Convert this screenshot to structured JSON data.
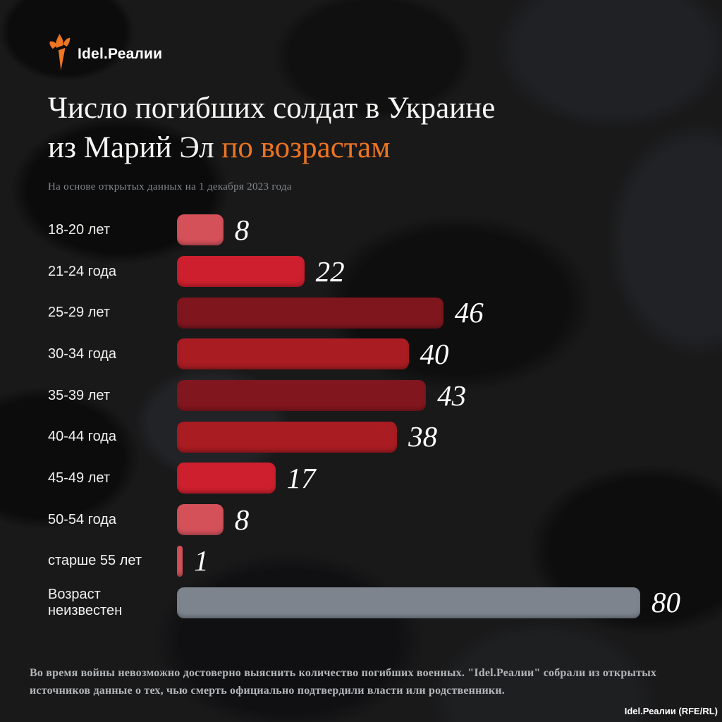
{
  "logo": {
    "text": "Idel.Реалии",
    "icon": "torch-icon",
    "icon_color": "#ee7623"
  },
  "header": {
    "title_line1": "Число погибших солдат в Украине",
    "title_line2_white": "из Марий Эл",
    "title_line2_accent": "по возрастам",
    "accent_color": "#ed7422",
    "subtitle": "На основе открытых данных на 1 декабря 2023 года"
  },
  "chart_data": {
    "type": "bar",
    "orientation": "horizontal",
    "title": "Число погибших солдат в Украине из Марий Эл по возрастам",
    "subtitle": "На основе открытых данных на 1 декабря 2023 года",
    "categories": [
      "18-20 лет",
      "21-24 года",
      "25-29 лет",
      "30-34 года",
      "35-39 лет",
      "40-44 года",
      "45-49 лет",
      "50-54 года",
      "старше 55 лет",
      "Возраст неизвестен"
    ],
    "values": [
      8,
      22,
      46,
      40,
      43,
      38,
      17,
      8,
      1,
      80
    ],
    "bar_colors": [
      "#d5515a",
      "#cd1f2d",
      "#7f161e",
      "#a81c22",
      "#82161e",
      "#a81c22",
      "#cd1f2d",
      "#d5515a",
      "#d5515a",
      "#7d848e"
    ],
    "xlim": [
      0,
      80
    ],
    "grid": false,
    "legend": false,
    "value_labels": "right-of-bar"
  },
  "footer": {
    "note": "Во время войны невозможно достоверно выяснить количество погибших военных. \"Idel.Реалии\" собрали из открытых источников данные о тех, чью смерть официально подтвердили власти или родственники.",
    "attribution": "Idel.Реалии (RFE/RL)"
  }
}
